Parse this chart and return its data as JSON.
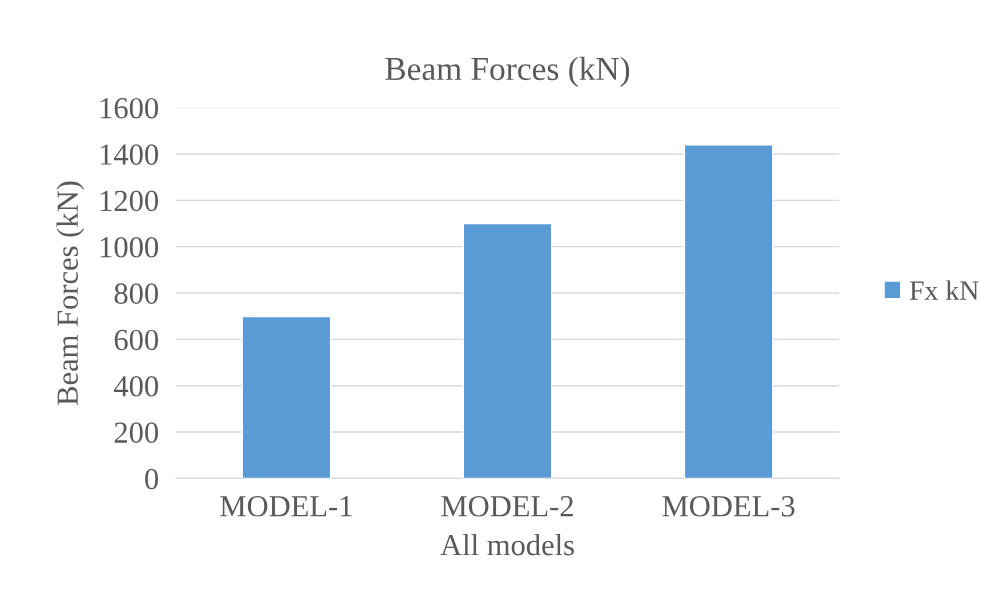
{
  "chart_data": {
    "type": "bar",
    "title": "Beam Forces (kN)",
    "xlabel": "All models",
    "ylabel": "Beam Forces (kN)",
    "categories": [
      "MODEL-1",
      "MODEL-2",
      "MODEL-3"
    ],
    "series": [
      {
        "name": "Fx kN",
        "color": "#5b9bd5",
        "values": [
          698,
          1100,
          1440
        ]
      }
    ],
    "ylim": [
      0,
      1600
    ],
    "yticks": [
      0,
      200,
      400,
      600,
      800,
      1000,
      1200,
      1400,
      1600
    ],
    "grid": "y",
    "legend": "right"
  }
}
